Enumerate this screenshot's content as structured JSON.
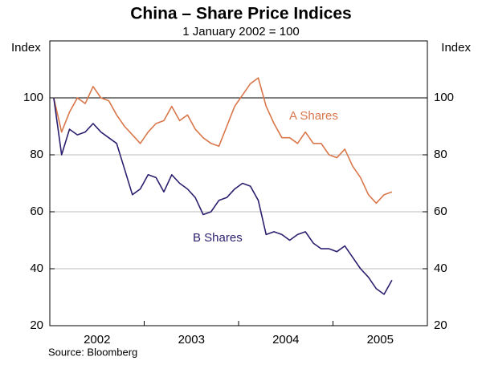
{
  "chart_data": {
    "type": "line",
    "title": "China – Share Price Indices",
    "subtitle": "1 January 2002 = 100",
    "y_label": "Index",
    "source": "Source: Bloomberg",
    "categories": [
      null,
      null,
      null,
      null,
      null,
      null,
      "2002",
      null,
      null,
      null,
      null,
      null,
      null,
      null,
      null,
      null,
      null,
      null,
      "2003",
      null,
      null,
      null,
      null,
      null,
      null,
      null,
      null,
      null,
      null,
      null,
      "2004",
      null,
      null,
      null,
      null,
      null,
      null,
      null,
      null,
      null,
      null,
      null,
      "2005",
      null,
      null,
      null,
      null,
      null
    ],
    "series": [
      {
        "name": "A Shares",
        "color": "#d9774b",
        "values": [
          100,
          88,
          95,
          100,
          98,
          104,
          100,
          99,
          94,
          90,
          87,
          84,
          88,
          91,
          92,
          97,
          92,
          94,
          89,
          86,
          84,
          83,
          90,
          97,
          101,
          105,
          107,
          97,
          91,
          86,
          86,
          84,
          88,
          84,
          84,
          80,
          79,
          82,
          76,
          72,
          66,
          63,
          66,
          67,
          null,
          null,
          null,
          null
        ]
      },
      {
        "name": "B Shares",
        "color": "#2b1f6e",
        "values": [
          100,
          80,
          89,
          87,
          88,
          91,
          88,
          86,
          84,
          75,
          66,
          68,
          73,
          72,
          67,
          73,
          70,
          68,
          65,
          59,
          60,
          64,
          65,
          68,
          70,
          69,
          64,
          52,
          53,
          52,
          50,
          52,
          53,
          49,
          47,
          47,
          46,
          48,
          44,
          40,
          37,
          33,
          31,
          36,
          null,
          null,
          null,
          null
        ]
      }
    ],
    "ylim": [
      20,
      120
    ],
    "yticks": [
      20,
      40,
      60,
      80,
      100
    ],
    "grid": true,
    "hline": 100
  }
}
